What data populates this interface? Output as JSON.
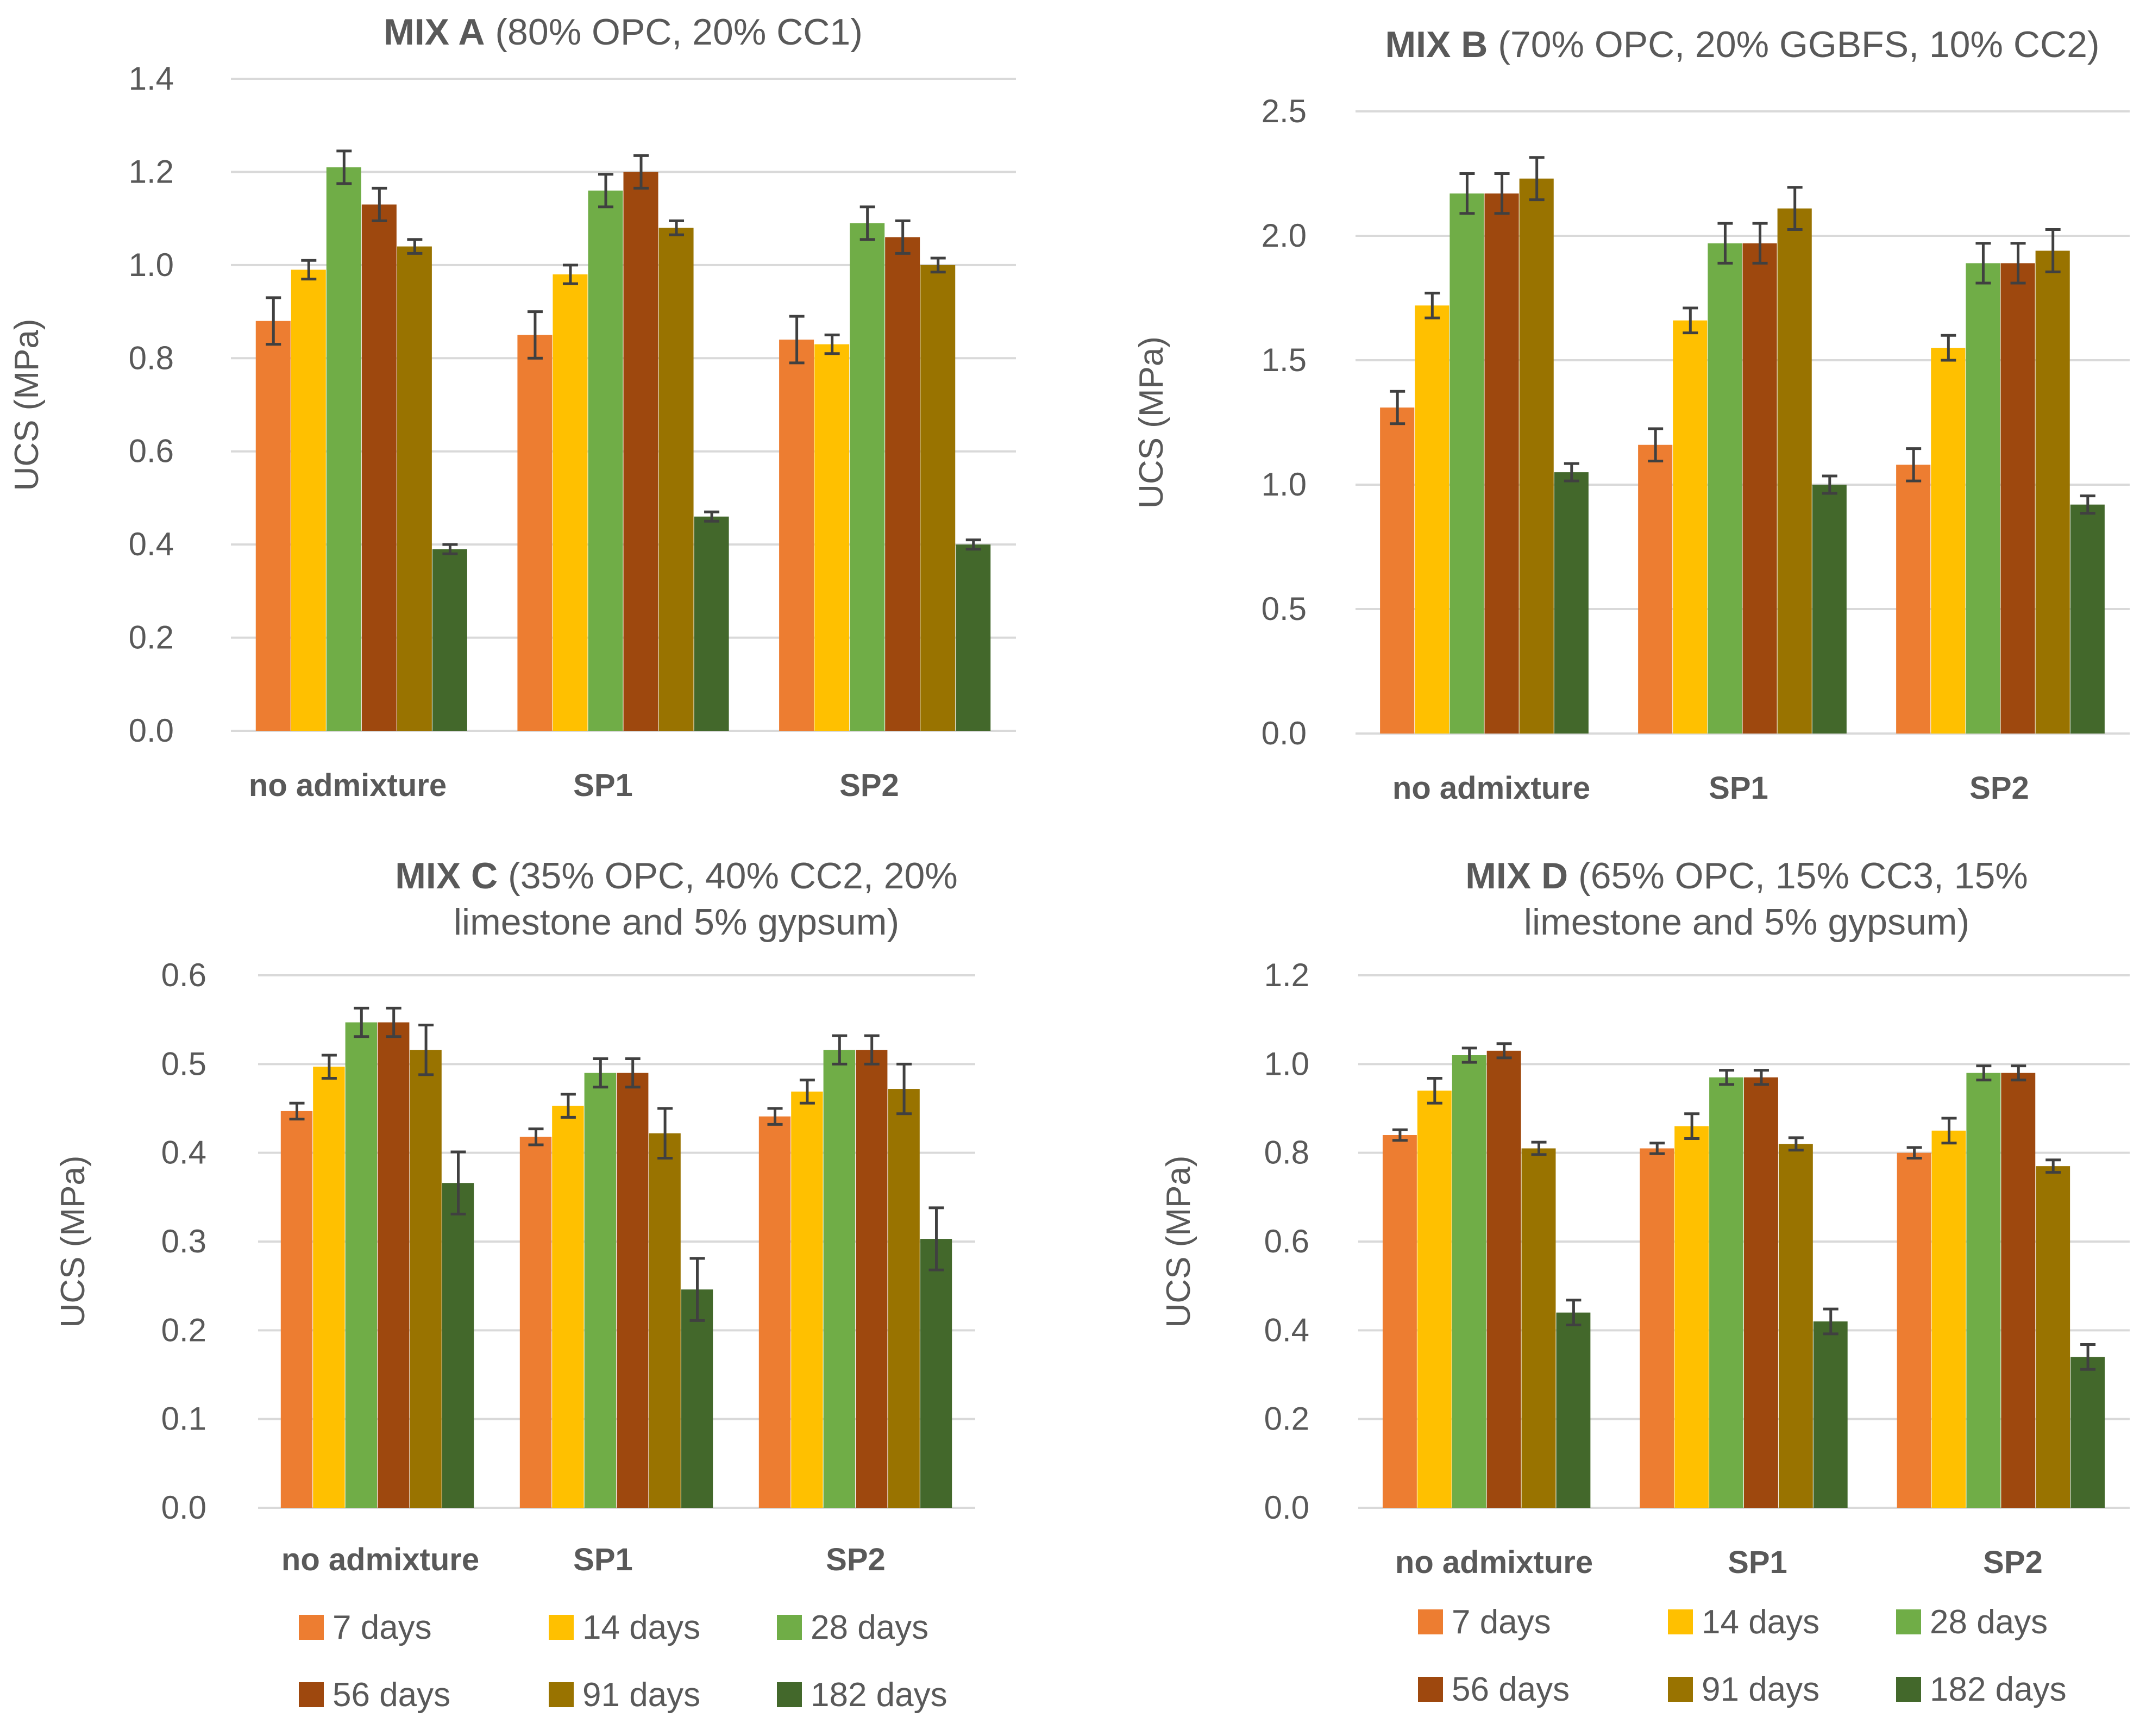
{
  "figure": {
    "series_names": [
      "7 days",
      "14 days",
      "28 days",
      "56 days",
      "91 days",
      "182 days"
    ],
    "series_colors": [
      "#ED7D31",
      "#FFC000",
      "#70AD47",
      "#9E480E",
      "#997300",
      "#43682B"
    ],
    "text_color": "#595959",
    "grid_color": "#D9D9D9",
    "error_color": "#404040"
  },
  "chart_data": [
    {
      "type": "bar",
      "title_bold": "MIX A",
      "title_rest": " (80% OPC, 20% CC1)",
      "title_lines": [
        ""
      ],
      "ylabel": "UCS (MPa)",
      "xlabel": "",
      "ylim": [
        0,
        1.4
      ],
      "yticks": [
        "0.0",
        "0.2",
        "0.4",
        "0.6",
        "0.8",
        "1.0",
        "1.2",
        "1.4"
      ],
      "categories": [
        "no admixture",
        "SP1",
        "SP2"
      ],
      "series": [
        {
          "name": "7 days",
          "values": [
            0.88,
            0.85,
            0.84
          ],
          "errors": [
            0.05,
            0.05,
            0.05
          ]
        },
        {
          "name": "14 days",
          "values": [
            0.99,
            0.98,
            0.83
          ],
          "errors": [
            0.02,
            0.02,
            0.02
          ]
        },
        {
          "name": "28 days",
          "values": [
            1.21,
            1.16,
            1.09
          ],
          "errors": [
            0.035,
            0.035,
            0.035
          ]
        },
        {
          "name": "56 days",
          "values": [
            1.13,
            1.2,
            1.06
          ],
          "errors": [
            0.035,
            0.035,
            0.035
          ]
        },
        {
          "name": "91 days",
          "values": [
            1.04,
            1.08,
            1.0
          ],
          "errors": [
            0.015,
            0.015,
            0.015
          ]
        },
        {
          "name": "182 days",
          "values": [
            0.39,
            0.46,
            0.4
          ],
          "errors": [
            0.01,
            0.01,
            0.01
          ]
        }
      ]
    },
    {
      "type": "bar",
      "title_bold": "MIX B",
      "title_rest": " (70% OPC, 20% GGBFS, 10% CC2)",
      "title_lines": [
        ""
      ],
      "ylabel": "UCS (MPa)",
      "xlabel": "",
      "ylim": [
        0,
        2.5
      ],
      "yticks": [
        "0.0",
        "0.5",
        "1.0",
        "1.5",
        "2.0",
        "2.5"
      ],
      "categories": [
        "no admixture",
        "SP1",
        "SP2"
      ],
      "series": [
        {
          "name": "7 days",
          "values": [
            1.31,
            1.16,
            1.08
          ],
          "errors": [
            0.065,
            0.065,
            0.065
          ]
        },
        {
          "name": "14 days",
          "values": [
            1.72,
            1.66,
            1.55
          ],
          "errors": [
            0.05,
            0.05,
            0.05
          ]
        },
        {
          "name": "28 days",
          "values": [
            2.17,
            1.97,
            1.89
          ],
          "errors": [
            0.08,
            0.08,
            0.08
          ]
        },
        {
          "name": "56 days",
          "values": [
            2.17,
            1.97,
            1.89
          ],
          "errors": [
            0.08,
            0.08,
            0.08
          ]
        },
        {
          "name": "91 days",
          "values": [
            2.23,
            2.11,
            1.94
          ],
          "errors": [
            0.085,
            0.085,
            0.085
          ]
        },
        {
          "name": "182 days",
          "values": [
            1.05,
            1.0,
            0.92
          ],
          "errors": [
            0.035,
            0.035,
            0.035
          ]
        }
      ]
    },
    {
      "type": "bar",
      "title_bold": "MIX C",
      "title_rest": " (35% OPC, 40% CC2, 20%",
      "title_lines": [
        "limestone and 5% gypsum)"
      ],
      "ylabel": "UCS (MPa)",
      "xlabel": "",
      "ylim": [
        0,
        0.6
      ],
      "yticks": [
        "0.0",
        "0.1",
        "0.2",
        "0.3",
        "0.4",
        "0.5",
        "0.6"
      ],
      "categories": [
        "no admixture",
        "SP1",
        "SP2"
      ],
      "series": [
        {
          "name": "7 days",
          "values": [
            0.447,
            0.418,
            0.441
          ],
          "errors": [
            0.009,
            0.009,
            0.009
          ]
        },
        {
          "name": "14 days",
          "values": [
            0.497,
            0.453,
            0.469
          ],
          "errors": [
            0.013,
            0.013,
            0.013
          ]
        },
        {
          "name": "28 days",
          "values": [
            0.547,
            0.49,
            0.516
          ],
          "errors": [
            0.016,
            0.016,
            0.016
          ]
        },
        {
          "name": "56 days",
          "values": [
            0.547,
            0.49,
            0.516
          ],
          "errors": [
            0.016,
            0.016,
            0.016
          ]
        },
        {
          "name": "91 days",
          "values": [
            0.516,
            0.422,
            0.472
          ],
          "errors": [
            0.028,
            0.028,
            0.028
          ]
        },
        {
          "name": "182 days",
          "values": [
            0.366,
            0.246,
            0.303
          ],
          "errors": [
            0.035,
            0.035,
            0.035
          ]
        }
      ]
    },
    {
      "type": "bar",
      "title_bold": "MIX D",
      "title_rest": " (65% OPC, 15% CC3, 15%",
      "title_lines": [
        "limestone and 5% gypsum)"
      ],
      "ylabel": "UCS (MPa)",
      "xlabel": "",
      "ylim": [
        0,
        1.2
      ],
      "yticks": [
        "0.0",
        "0.2",
        "0.4",
        "0.6",
        "0.8",
        "1.0",
        "1.2"
      ],
      "categories": [
        "no admixture",
        "SP1",
        "SP2"
      ],
      "series": [
        {
          "name": "7 days",
          "values": [
            0.84,
            0.81,
            0.8
          ],
          "errors": [
            0.012,
            0.012,
            0.012
          ]
        },
        {
          "name": "14 days",
          "values": [
            0.94,
            0.86,
            0.85
          ],
          "errors": [
            0.028,
            0.028,
            0.028
          ]
        },
        {
          "name": "28 days",
          "values": [
            1.02,
            0.97,
            0.98
          ],
          "errors": [
            0.016,
            0.016,
            0.016
          ]
        },
        {
          "name": "56 days",
          "values": [
            1.03,
            0.97,
            0.98
          ],
          "errors": [
            0.016,
            0.016,
            0.016
          ]
        },
        {
          "name": "91 days",
          "values": [
            0.81,
            0.82,
            0.77
          ],
          "errors": [
            0.014,
            0.014,
            0.014
          ]
        },
        {
          "name": "182 days",
          "values": [
            0.44,
            0.42,
            0.34
          ],
          "errors": [
            0.028,
            0.028,
            0.028
          ]
        }
      ]
    }
  ]
}
